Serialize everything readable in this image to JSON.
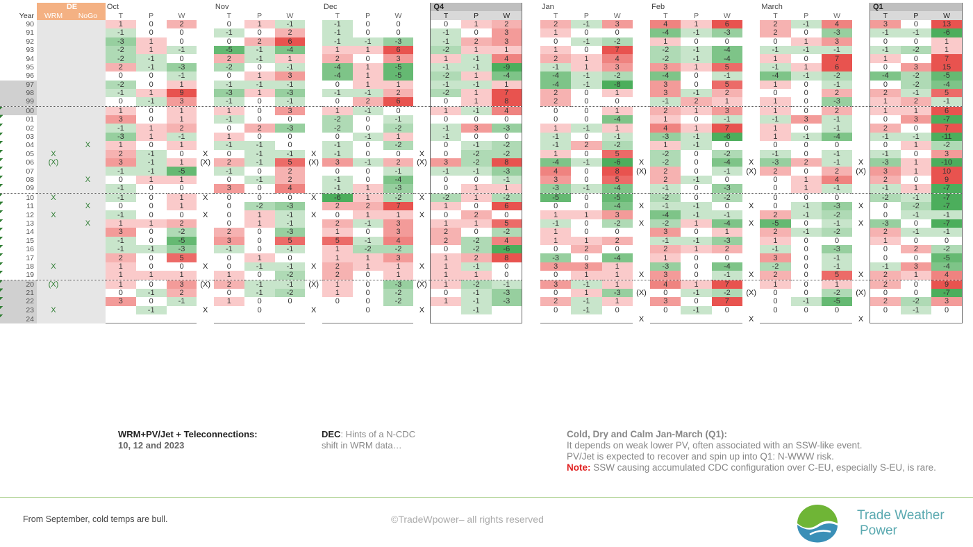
{
  "left": {
    "de_label": "DE",
    "de_sub": [
      "WRM",
      "NoGo"
    ],
    "year_label": "Year",
    "groups": [
      "Oct",
      "Nov",
      "Dec",
      "Q4"
    ],
    "sub": [
      "T",
      "P",
      "W"
    ],
    "years": [
      "90",
      "91",
      "92",
      "93",
      "94",
      "95",
      "96",
      "97",
      "98",
      "99",
      "00",
      "01",
      "02",
      "03",
      "04",
      "05",
      "06",
      "07",
      "08",
      "09",
      "10",
      "11",
      "12",
      "13",
      "14",
      "15",
      "16",
      "17",
      "18",
      "19",
      "20",
      "21",
      "22",
      "23",
      "24"
    ],
    "wrm": [
      "",
      "",
      "",
      "",
      "",
      "",
      "",
      "",
      "",
      "",
      "",
      "",
      "",
      "",
      "",
      "X",
      "(X)",
      "",
      "",
      "",
      "X",
      "",
      "X",
      "",
      "",
      "",
      "",
      "",
      "X",
      "",
      "(X)",
      "",
      "",
      "X",
      ""
    ],
    "nogo": [
      "",
      "",
      "",
      "",
      "",
      "",
      "",
      "",
      "",
      "",
      "",
      "",
      "",
      "",
      "X",
      "",
      "",
      "",
      "X",
      "",
      "",
      "X",
      "",
      "X",
      "",
      "",
      "",
      "",
      "",
      "",
      "",
      "",
      "",
      "",
      ""
    ],
    "markers": [
      [
        "",
        "",
        "",
        ""
      ],
      [
        "",
        "",
        "",
        ""
      ],
      [
        "",
        "",
        "",
        ""
      ],
      [
        "",
        "",
        "",
        ""
      ],
      [
        "",
        "",
        "",
        ""
      ],
      [
        "",
        "",
        "",
        ""
      ],
      [
        "",
        "",
        "",
        ""
      ],
      [
        "",
        "",
        "",
        ""
      ],
      [
        "",
        "",
        "",
        ""
      ],
      [
        "",
        "",
        "",
        ""
      ],
      [
        "",
        "",
        "",
        ""
      ],
      [
        "",
        "",
        "",
        ""
      ],
      [
        "",
        "",
        "",
        ""
      ],
      [
        "",
        "",
        "",
        ""
      ],
      [
        "",
        "",
        "",
        ""
      ],
      [
        "X",
        "X",
        "X",
        ""
      ],
      [
        "(X)",
        "(X)",
        "(X)",
        ""
      ],
      [
        "",
        "",
        "",
        ""
      ],
      [
        "",
        "",
        "",
        ""
      ],
      [
        "",
        "",
        "",
        ""
      ],
      [
        "X",
        "X",
        "X",
        ""
      ],
      [
        "",
        "",
        "",
        ""
      ],
      [
        "X",
        "X",
        "X",
        ""
      ],
      [
        "",
        "",
        "",
        ""
      ],
      [
        "",
        "",
        "",
        ""
      ],
      [
        "",
        "",
        "",
        ""
      ],
      [
        "",
        "",
        "",
        ""
      ],
      [
        "",
        "",
        "",
        ""
      ],
      [
        "X",
        "X",
        "X",
        ""
      ],
      [
        "",
        "",
        "",
        ""
      ],
      [
        "(X)",
        "(X)",
        "(X)",
        ""
      ],
      [
        "",
        "",
        "",
        ""
      ],
      [
        "",
        "",
        "",
        ""
      ],
      [
        "X",
        "X",
        "X",
        ""
      ],
      [
        "",
        "",
        "",
        ""
      ]
    ],
    "rows": [
      [
        "1",
        "0",
        "2",
        "0",
        "1",
        "-1",
        "-1",
        "0",
        "0",
        "0",
        "1",
        "2"
      ],
      [
        "-1",
        "0",
        "0",
        "-1",
        "0",
        "2",
        "-1",
        "0",
        "0",
        "-1",
        "0",
        "3"
      ],
      [
        "-3",
        "1",
        "0",
        "0",
        "2",
        "6",
        "-1",
        "-1",
        "-3",
        "-1",
        "2",
        "3"
      ],
      [
        "-2",
        "1",
        "-1",
        "-5",
        "-1",
        "-4",
        "1",
        "1",
        "6",
        "-2",
        "1",
        "1"
      ],
      [
        "-2",
        "-1",
        "0",
        "2",
        "-1",
        "1",
        "2",
        "0",
        "3",
        "1",
        "-1",
        "4"
      ],
      [
        "2",
        "-1",
        "-3",
        "-2",
        "0",
        "-1",
        "-4",
        "1",
        "-5",
        "-1",
        "-1",
        "-9"
      ],
      [
        "0",
        "0",
        "-1",
        "0",
        "1",
        "3",
        "-4",
        "1",
        "-5",
        "-2",
        "1",
        "-4"
      ],
      [
        "-2",
        "0",
        "1",
        "-1",
        "-1",
        "-1",
        "0",
        "1",
        "1",
        "-1",
        "-1",
        "1"
      ],
      [
        "-1",
        "1",
        "9",
        "-3",
        "1",
        "-3",
        "-1",
        "-1",
        "2",
        "-2",
        "1",
        "7"
      ],
      [
        "0",
        "-1",
        "3",
        "-1",
        "0",
        "-1",
        "0",
        "2",
        "6",
        "0",
        "1",
        "8"
      ],
      [
        "1",
        "0",
        "1",
        "1",
        "0",
        "3",
        "1",
        "-1",
        "0",
        "1",
        "-1",
        "4"
      ],
      [
        "3",
        "0",
        "1",
        "-1",
        "0",
        "0",
        "-2",
        "0",
        "-1",
        "0",
        "0",
        "0"
      ],
      [
        "-1",
        "1",
        "2",
        "0",
        "2",
        "-3",
        "-2",
        "0",
        "-2",
        "-1",
        "3",
        "-3"
      ],
      [
        "-3",
        "1",
        "-1",
        "1",
        "0",
        "0",
        "0",
        "-1",
        "1",
        "-1",
        "0",
        "0"
      ],
      [
        "1",
        "0",
        "1",
        "-1",
        "-1",
        "0",
        "-1",
        "0",
        "-2",
        "0",
        "-1",
        "-2"
      ],
      [
        "2",
        "-1",
        "0",
        "0",
        "-1",
        "-1",
        "-1",
        "0",
        "0",
        "0",
        "-2",
        "-2"
      ],
      [
        "3",
        "-1",
        "1",
        "2",
        "-1",
        "5",
        "3",
        "-1",
        "2",
        "3",
        "-2",
        "8"
      ],
      [
        "-1",
        "-1",
        "-5",
        "-1",
        "0",
        "2",
        "0",
        "0",
        "-1",
        "-1",
        "-1",
        "-3"
      ],
      [
        "0",
        "1",
        "1",
        "0",
        "-1",
        "2",
        "-1",
        "0",
        "-4",
        "0",
        "0",
        "-1"
      ],
      [
        "-1",
        "0",
        "0",
        "3",
        "0",
        "4",
        "-1",
        "1",
        "-3",
        "0",
        "1",
        "1"
      ],
      [
        "-1",
        "0",
        "1",
        "0",
        "0",
        "0",
        "-6",
        "1",
        "-2",
        "-2",
        "1",
        "-2"
      ],
      [
        "0",
        "0",
        "1",
        "0",
        "-2",
        "-3",
        "2",
        "2",
        "7",
        "1",
        "0",
        "6"
      ],
      [
        "-1",
        "0",
        "0",
        "0",
        "1",
        "-1",
        "0",
        "1",
        "1",
        "0",
        "2",
        "0"
      ],
      [
        "1",
        "1",
        "2",
        "0",
        "1",
        "-1",
        "2",
        "-1",
        "3",
        "1",
        "1",
        "5"
      ],
      [
        "3",
        "0",
        "-2",
        "2",
        "0",
        "-3",
        "1",
        "0",
        "3",
        "2",
        "0",
        "-2"
      ],
      [
        "-1",
        "0",
        "-5",
        "3",
        "0",
        "5",
        "5",
        "-1",
        "4",
        "2",
        "-2",
        "4"
      ],
      [
        "-1",
        "-1",
        "-3",
        "-1",
        "0",
        "-1",
        "1",
        "-2",
        "-2",
        "0",
        "-2",
        "-6"
      ],
      [
        "2",
        "0",
        "5",
        "0",
        "1",
        "0",
        "1",
        "1",
        "3",
        "1",
        "2",
        "8"
      ],
      [
        "1",
        "0",
        "0",
        "0",
        "-1",
        "-1",
        "2",
        "1",
        "1",
        "1",
        "-1",
        "0"
      ],
      [
        "1",
        "1",
        "1",
        "1",
        "0",
        "-2",
        "2",
        "0",
        "1",
        "1",
        "1",
        "0"
      ],
      [
        "1",
        "0",
        "3",
        "2",
        "-1",
        "-1",
        "1",
        "0",
        "-3",
        "1",
        "-2",
        "-1"
      ],
      [
        "0",
        "-1",
        "2",
        "0",
        "-1",
        "-2",
        "1",
        "0",
        "-2",
        "0",
        "-1",
        "-3"
      ],
      [
        "3",
        "0",
        "-1",
        "1",
        "0",
        "0",
        "0",
        "0",
        "-2",
        "1",
        "-1",
        "-3"
      ],
      [
        "",
        "-1",
        "",
        "",
        "0",
        "",
        "",
        "0",
        "",
        "",
        "-1",
        ""
      ],
      [
        "",
        "",
        "",
        "",
        "",
        "",
        "",
        "",
        "",
        "",
        "",
        ""
      ]
    ]
  },
  "right": {
    "groups": [
      "Jan",
      "Feb",
      "March",
      "Q1"
    ],
    "sub": [
      "T",
      "P",
      "W"
    ],
    "markers": [
      [
        "",
        "",
        "",
        ""
      ],
      [
        "",
        "",
        "",
        ""
      ],
      [
        "",
        "",
        "",
        ""
      ],
      [
        "",
        "",
        "",
        ""
      ],
      [
        "",
        "",
        "",
        ""
      ],
      [
        "",
        "",
        "",
        ""
      ],
      [
        "",
        "",
        "",
        ""
      ],
      [
        "",
        "",
        "",
        ""
      ],
      [
        "",
        "",
        "",
        ""
      ],
      [
        "",
        "",
        "",
        ""
      ],
      [
        "",
        "",
        "",
        ""
      ],
      [
        "",
        "",
        "",
        ""
      ],
      [
        "",
        "",
        "",
        ""
      ],
      [
        "",
        "",
        "",
        ""
      ],
      [
        "",
        "",
        "",
        ""
      ],
      [
        "",
        "",
        "",
        ""
      ],
      [
        "X",
        "X",
        "X",
        ""
      ],
      [
        "(X)",
        "(X)",
        "(X)",
        ""
      ],
      [
        "",
        "",
        "",
        ""
      ],
      [
        "",
        "",
        "",
        ""
      ],
      [
        "",
        "",
        "",
        ""
      ],
      [
        "X",
        "X",
        "X",
        ""
      ],
      [
        "",
        "",
        "",
        ""
      ],
      [
        "X",
        "X",
        "X",
        ""
      ],
      [
        "",
        "",
        "",
        ""
      ],
      [
        "",
        "",
        "",
        ""
      ],
      [
        "",
        "",
        "",
        ""
      ],
      [
        "",
        "",
        "",
        ""
      ],
      [
        "",
        "",
        "",
        ""
      ],
      [
        "X",
        "X",
        "X",
        ""
      ],
      [
        "",
        "",
        "",
        ""
      ],
      [
        "(X)",
        "(X)",
        "(X)",
        ""
      ],
      [
        "",
        "",
        "",
        ""
      ],
      [
        "",
        "",
        "",
        ""
      ],
      [
        "X",
        "X",
        "X",
        ""
      ]
    ],
    "rows": [
      [
        "2",
        "-1",
        "3",
        "4",
        "1",
        "6",
        "2",
        "-1",
        "4",
        "3",
        "0",
        "13"
      ],
      [
        "1",
        "0",
        "0",
        "-4",
        "-1",
        "-3",
        "2",
        "0",
        "-3",
        "-1",
        "-1",
        "-6"
      ],
      [
        "0",
        "-1",
        "-2",
        "1",
        "0",
        "0",
        "0",
        "1",
        "3",
        "0",
        "0",
        "1"
      ],
      [
        "1",
        "0",
        "7",
        "-2",
        "-1",
        "-4",
        "-1",
        "-1",
        "-1",
        "-1",
        "-2",
        "1"
      ],
      [
        "2",
        "1",
        "4",
        "-2",
        "-1",
        "-4",
        "1",
        "0",
        "7",
        "1",
        "0",
        "7"
      ],
      [
        "-1",
        "1",
        "3",
        "3",
        "1",
        "5",
        "-1",
        "1",
        "6",
        "0",
        "3",
        "15"
      ],
      [
        "-4",
        "-1",
        "-2",
        "-4",
        "0",
        "-1",
        "-4",
        "-1",
        "-2",
        "-4",
        "-2",
        "-5"
      ],
      [
        "-4",
        "-1",
        "-8",
        "3",
        "0",
        "5",
        "1",
        "0",
        "-1",
        "0",
        "-2",
        "-4"
      ],
      [
        "2",
        "0",
        "1",
        "3",
        "-1",
        "2",
        "0",
        "0",
        "2",
        "2",
        "-1",
        "5"
      ],
      [
        "2",
        "0",
        "0",
        "-1",
        "2",
        "1",
        "1",
        "0",
        "-3",
        "1",
        "2",
        "-1"
      ],
      [
        "0",
        "0",
        "1",
        "2",
        "1",
        "3",
        "1",
        "0",
        "2",
        "1",
        "1",
        "6"
      ],
      [
        "0",
        "0",
        "-4",
        "1",
        "0",
        "-1",
        "-1",
        "3",
        "-1",
        "0",
        "3",
        "-7"
      ],
      [
        "1",
        "-1",
        "1",
        "4",
        "1",
        "7",
        "1",
        "0",
        "-1",
        "2",
        "0",
        "7"
      ],
      [
        "-1",
        "0",
        "-1",
        "-3",
        "-1",
        "-6",
        "1",
        "-1",
        "-4",
        "-1",
        "-1",
        "-11"
      ],
      [
        "-1",
        "2",
        "-2",
        "1",
        "-1",
        "0",
        "0",
        "0",
        "0",
        "0",
        "1",
        "-2"
      ],
      [
        "1",
        "0",
        "5",
        "-2",
        "0",
        "-2",
        "-1",
        "0",
        "-1",
        "-1",
        "0",
        "3"
      ],
      [
        "-4",
        "-1",
        "-6",
        "-2",
        "0",
        "-4",
        "-3",
        "2",
        "-1",
        "-3",
        "1",
        "-10"
      ],
      [
        "4",
        "0",
        "8",
        "2",
        "0",
        "-1",
        "2",
        "0",
        "2",
        "3",
        "1",
        "10"
      ],
      [
        "3",
        "0",
        "5",
        "2",
        "-1",
        "0",
        "0",
        "1",
        "4",
        "2",
        "0",
        "9"
      ],
      [
        "-3",
        "-1",
        "-4",
        "-1",
        "0",
        "-3",
        "0",
        "1",
        "-1",
        "-1",
        "1",
        "-7"
      ],
      [
        "-5",
        "0",
        "-5",
        "-2",
        "0",
        "-2",
        "0",
        "0",
        "0",
        "-2",
        "-1",
        "-7"
      ],
      [
        "0",
        "0",
        "-4",
        "-1",
        "-1",
        "0",
        "0",
        "-1",
        "-3",
        "0",
        "-2",
        "-7"
      ],
      [
        "1",
        "1",
        "3",
        "-4",
        "-1",
        "-1",
        "2",
        "-1",
        "-2",
        "0",
        "-1",
        "-1"
      ],
      [
        "-1",
        "0",
        "-2",
        "-2",
        "1",
        "-4",
        "-5",
        "0",
        "-1",
        "-3",
        "0",
        "-7"
      ],
      [
        "1",
        "0",
        "0",
        "3",
        "0",
        "1",
        "2",
        "-1",
        "-2",
        "2",
        "-1",
        "-1"
      ],
      [
        "1",
        "1",
        "2",
        "-1",
        "-1",
        "-3",
        "1",
        "0",
        "0",
        "1",
        "0",
        "0"
      ],
      [
        "0",
        "2",
        "0",
        "2",
        "1",
        "2",
        "-1",
        "0",
        "-3",
        "0",
        "2",
        "-2"
      ],
      [
        "-3",
        "0",
        "-4",
        "1",
        "0",
        "0",
        "3",
        "0",
        "-1",
        "0",
        "0",
        "-5"
      ],
      [
        "3",
        "3",
        "1",
        "-3",
        "0",
        "-4",
        "-2",
        "0",
        "-1",
        "-1",
        "3",
        "-4"
      ],
      [
        "0",
        "1",
        "1",
        "3",
        "0",
        "-1",
        "2",
        "0",
        "5",
        "2",
        "1",
        "4"
      ],
      [
        "3",
        "-1",
        "1",
        "4",
        "1",
        "7",
        "1",
        "0",
        "1",
        "2",
        "0",
        "9"
      ],
      [
        "0",
        "1",
        "-3",
        "0",
        "-1",
        "-2",
        "0",
        "0",
        "-2",
        "0",
        "0",
        "-7"
      ],
      [
        "2",
        "-1",
        "1",
        "3",
        "0",
        "7",
        "0",
        "-1",
        "-5",
        "2",
        "-2",
        "3"
      ],
      [
        "0",
        "-1",
        "0",
        "0",
        "-1",
        "0",
        "0",
        "0",
        "0",
        "0",
        "-1",
        "0"
      ],
      [
        "",
        "",
        "",
        "",
        "",
        "",
        "",
        "",
        "",
        "",
        "",
        ""
      ]
    ]
  },
  "notes": {
    "wrm_title": "WRM+PV/Jet + Teleconnections:",
    "wrm_years": "10, 12 and 2023",
    "dec_label": "DEC",
    "dec_text": ": Hints of a N-CDC shift in WRM data…",
    "q1_title": "Cold, Dry and Calm Jan-March (Q1):",
    "q1_line1": "It depends on weak lower PV, often associated with an SSW-like event.",
    "q1_line2": "PV/Jet is expected to recover and spin up into Q1: N-WWW risk.",
    "q1_note_label": "Note:",
    "q1_note_text": " SSW causing accumulated CDC configuration over C-EU, especially S-EU, is rare."
  },
  "footer": {
    "left": "From September, cold temps are bull.",
    "center": "©TradeWpower– all rights reserved",
    "brand_line1": "Trade Weather",
    "brand_line2": "Power"
  },
  "colors": {
    "pos": "#e8534f",
    "neg": "#4cae5c",
    "de_header": "#f4b183",
    "q_header": "#bfbfbf",
    "grid_dots": "#555555",
    "brand": "#5aa9b0"
  }
}
